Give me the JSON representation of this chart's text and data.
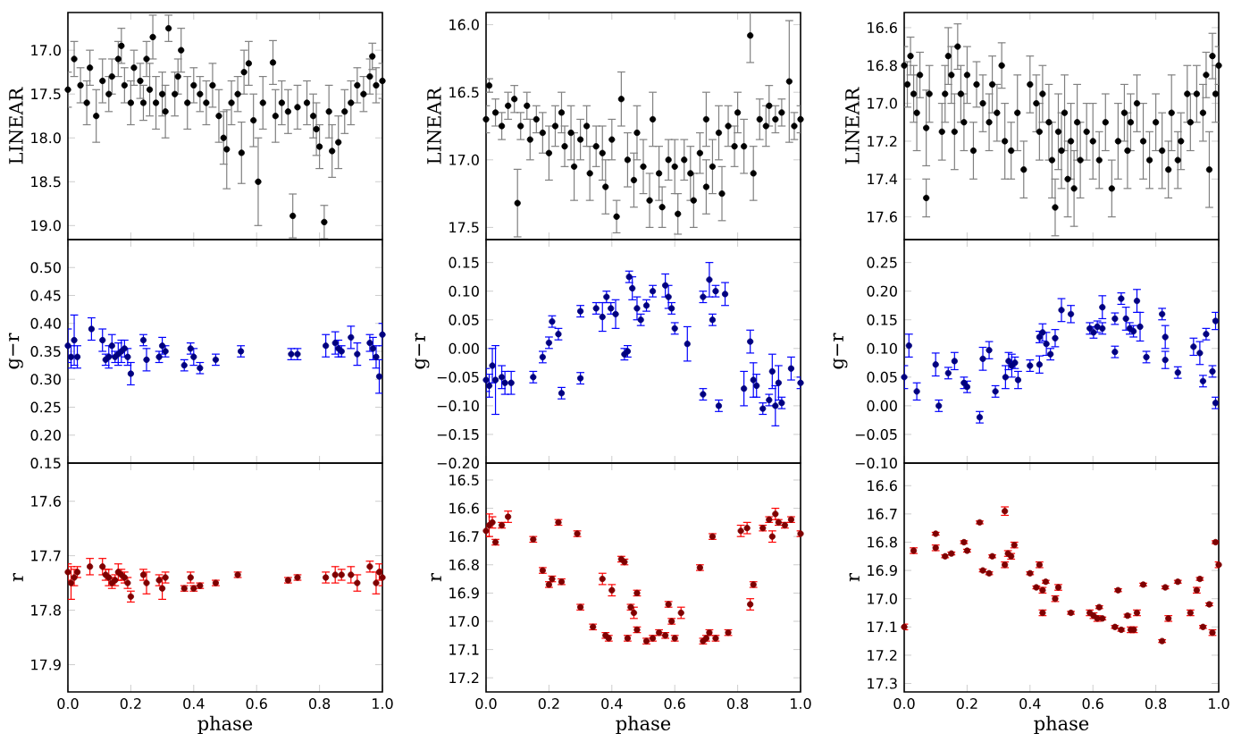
{
  "chart_data": [
    {
      "type": "scatter",
      "ylabel": "LINEAR",
      "color": "#000000",
      "marker": "circle",
      "tick_labels": "y",
      "xlim": [
        0,
        1
      ],
      "ylim": [
        19.16,
        16.57
      ],
      "xticks": [
        {
          "value": 0,
          "label": null
        },
        {
          "value": 0.2,
          "label": null
        },
        {
          "value": 0.4,
          "label": null
        },
        {
          "value": 0.6,
          "label": null
        },
        {
          "value": 0.8,
          "label": null
        },
        {
          "value": 1,
          "label": null
        }
      ],
      "yticks": [
        {
          "value": 17.0,
          "label": "17.0"
        },
        {
          "value": 17.5,
          "label": "17.5"
        },
        {
          "value": 18.0,
          "label": "18.0"
        },
        {
          "value": 18.5,
          "label": "18.5"
        },
        {
          "value": 19.0,
          "label": "19.0"
        }
      ],
      "x": [
        0.0,
        0.02,
        0.04,
        0.06,
        0.07,
        0.09,
        0.11,
        0.13,
        0.14,
        0.16,
        0.17,
        0.18,
        0.2,
        0.21,
        0.23,
        0.24,
        0.25,
        0.26,
        0.27,
        0.28,
        0.3,
        0.31,
        0.32,
        0.34,
        0.35,
        0.36,
        0.38,
        0.4,
        0.42,
        0.44,
        0.46,
        0.48,
        0.495,
        0.505,
        0.52,
        0.54,
        0.552,
        0.56,
        0.575,
        0.59,
        0.605,
        0.62,
        0.652,
        0.66,
        0.68,
        0.7,
        0.715,
        0.73,
        0.76,
        0.78,
        0.79,
        0.8,
        0.815,
        0.83,
        0.84,
        0.86,
        0.88,
        0.9,
        0.92,
        0.94,
        0.96,
        0.968,
        0.98,
        1.0
      ],
      "values": [
        17.45,
        17.1,
        17.4,
        17.6,
        17.2,
        17.75,
        17.35,
        17.5,
        17.3,
        17.1,
        16.95,
        17.4,
        17.6,
        17.2,
        17.35,
        17.6,
        17.1,
        17.45,
        16.85,
        17.6,
        17.5,
        17.7,
        16.75,
        17.5,
        17.3,
        17.0,
        17.6,
        17.4,
        17.5,
        17.6,
        17.4,
        17.75,
        18.0,
        18.13,
        17.6,
        17.5,
        18.17,
        17.25,
        17.15,
        17.8,
        18.5,
        17.6,
        17.14,
        17.75,
        17.6,
        17.7,
        18.89,
        17.65,
        17.6,
        17.75,
        17.9,
        18.1,
        18.96,
        17.7,
        18.15,
        18.05,
        17.7,
        17.6,
        17.4,
        17.5,
        17.3,
        17.07,
        17.4,
        17.35
      ],
      "errors": [
        0.2,
        0.2,
        0.2,
        0.25,
        0.2,
        0.3,
        0.25,
        0.2,
        0.2,
        0.2,
        0.2,
        0.2,
        0.25,
        0.2,
        0.2,
        0.2,
        0.2,
        0.3,
        0.25,
        0.3,
        0.25,
        0.3,
        0.15,
        0.25,
        0.2,
        0.25,
        0.3,
        0.2,
        0.2,
        0.25,
        0.25,
        0.3,
        0.3,
        0.45,
        0.25,
        0.2,
        0.35,
        0.25,
        0.25,
        0.3,
        0.5,
        0.3,
        0.25,
        0.3,
        0.25,
        0.25,
        0.25,
        0.25,
        0.25,
        0.25,
        0.3,
        0.25,
        0.19,
        0.3,
        0.3,
        0.3,
        0.25,
        0.25,
        0.2,
        0.2,
        0.2,
        0.15,
        0.2,
        0.2
      ]
    },
    {
      "type": "scatter",
      "ylabel": "LINEAR",
      "color": "#000000",
      "marker": "circle",
      "tick_labels": "y",
      "xlim": [
        0,
        1
      ],
      "ylim": [
        17.59,
        15.91
      ],
      "xticks": [
        {
          "value": 0,
          "label": null
        },
        {
          "value": 0.2,
          "label": null
        },
        {
          "value": 0.4,
          "label": null
        },
        {
          "value": 0.6,
          "label": null
        },
        {
          "value": 0.8,
          "label": null
        },
        {
          "value": 1,
          "label": null
        }
      ],
      "yticks": [
        {
          "value": 16.0,
          "label": "16.0"
        },
        {
          "value": 16.5,
          "label": "16.5"
        },
        {
          "value": 17.0,
          "label": "17.0"
        },
        {
          "value": 17.5,
          "label": "17.5"
        }
      ],
      "x": [
        0.0,
        0.01,
        0.03,
        0.05,
        0.07,
        0.09,
        0.1,
        0.11,
        0.13,
        0.14,
        0.16,
        0.18,
        0.2,
        0.22,
        0.24,
        0.25,
        0.27,
        0.28,
        0.3,
        0.32,
        0.33,
        0.35,
        0.37,
        0.38,
        0.4,
        0.415,
        0.43,
        0.45,
        0.47,
        0.48,
        0.5,
        0.52,
        0.53,
        0.55,
        0.56,
        0.58,
        0.6,
        0.61,
        0.63,
        0.65,
        0.66,
        0.68,
        0.7,
        0.7,
        0.72,
        0.74,
        0.75,
        0.77,
        0.79,
        0.8,
        0.82,
        0.84,
        0.85,
        0.87,
        0.89,
        0.9,
        0.92,
        0.94,
        0.964,
        0.98,
        1.0
      ],
      "values": [
        16.7,
        16.45,
        16.65,
        16.75,
        16.6,
        16.55,
        17.32,
        16.75,
        16.6,
        16.85,
        16.7,
        16.8,
        16.95,
        16.75,
        16.65,
        16.9,
        16.8,
        17.05,
        16.85,
        16.75,
        17.1,
        16.9,
        16.95,
        17.2,
        16.85,
        17.42,
        16.55,
        17.0,
        17.15,
        16.8,
        17.05,
        17.3,
        16.7,
        17.1,
        17.35,
        17.0,
        17.05,
        17.4,
        17.0,
        17.1,
        17.3,
        16.95,
        17.2,
        16.7,
        17.05,
        16.8,
        17.25,
        16.75,
        16.9,
        16.65,
        16.9,
        16.08,
        17.1,
        16.7,
        16.75,
        16.6,
        16.7,
        16.65,
        16.42,
        16.75,
        16.7
      ],
      "errors": [
        0.1,
        0.05,
        0.1,
        0.1,
        0.1,
        0.1,
        0.25,
        0.1,
        0.1,
        0.15,
        0.1,
        0.15,
        0.2,
        0.15,
        0.15,
        0.15,
        0.2,
        0.25,
        0.15,
        0.15,
        0.2,
        0.15,
        0.2,
        0.2,
        0.15,
        0.12,
        0.2,
        0.2,
        0.2,
        0.2,
        0.2,
        0.2,
        0.2,
        0.2,
        0.15,
        0.15,
        0.2,
        0.15,
        0.15,
        0.2,
        0.2,
        0.15,
        0.2,
        0.2,
        0.2,
        0.2,
        0.2,
        0.15,
        0.15,
        0.15,
        0.2,
        0.2,
        0.2,
        0.15,
        0.15,
        0.15,
        0.1,
        0.1,
        0.45,
        0.1,
        0.1
      ]
    },
    {
      "type": "scatter",
      "ylabel": "LINEAR",
      "color": "#000000",
      "marker": "circle",
      "tick_labels": "y",
      "xlim": [
        0,
        1
      ],
      "ylim": [
        17.72,
        16.52
      ],
      "xticks": [
        {
          "value": 0,
          "label": null
        },
        {
          "value": 0.2,
          "label": null
        },
        {
          "value": 0.4,
          "label": null
        },
        {
          "value": 0.6,
          "label": null
        },
        {
          "value": 0.8,
          "label": null
        },
        {
          "value": 1,
          "label": null
        }
      ],
      "yticks": [
        {
          "value": 16.6,
          "label": "16.6"
        },
        {
          "value": 16.8,
          "label": "16.8"
        },
        {
          "value": 17.0,
          "label": "17.0"
        },
        {
          "value": 17.2,
          "label": "17.2"
        },
        {
          "value": 17.4,
          "label": "17.4"
        },
        {
          "value": 17.6,
          "label": "17.6"
        }
      ],
      "x": [
        0.0,
        0.01,
        0.02,
        0.03,
        0.04,
        0.05,
        0.07,
        0.07,
        0.08,
        0.12,
        0.13,
        0.14,
        0.15,
        0.16,
        0.17,
        0.18,
        0.19,
        0.2,
        0.22,
        0.23,
        0.25,
        0.27,
        0.28,
        0.295,
        0.31,
        0.32,
        0.34,
        0.36,
        0.38,
        0.4,
        0.42,
        0.43,
        0.44,
        0.46,
        0.47,
        0.48,
        0.49,
        0.5,
        0.51,
        0.52,
        0.53,
        0.54,
        0.55,
        0.56,
        0.58,
        0.6,
        0.62,
        0.64,
        0.66,
        0.68,
        0.7,
        0.71,
        0.72,
        0.74,
        0.76,
        0.78,
        0.8,
        0.82,
        0.84,
        0.85,
        0.87,
        0.88,
        0.9,
        0.91,
        0.93,
        0.95,
        0.96,
        0.97,
        0.98,
        0.99,
        1.0
      ],
      "values": [
        16.8,
        16.9,
        16.75,
        16.95,
        17.05,
        16.85,
        17.13,
        17.5,
        16.95,
        17.15,
        16.95,
        16.75,
        16.85,
        17.15,
        16.7,
        16.95,
        17.1,
        16.85,
        17.25,
        16.9,
        17.0,
        17.1,
        16.9,
        17.05,
        16.8,
        17.2,
        17.25,
        17.05,
        17.35,
        16.9,
        17.0,
        17.15,
        16.95,
        17.1,
        17.3,
        17.55,
        17.15,
        17.25,
        17.05,
        17.4,
        17.2,
        17.45,
        17.1,
        17.3,
        17.15,
        17.2,
        17.3,
        17.1,
        17.45,
        17.2,
        17.05,
        17.25,
        17.1,
        17.0,
        17.2,
        17.3,
        17.1,
        17.25,
        17.35,
        17.05,
        17.3,
        17.2,
        16.95,
        17.1,
        16.95,
        17.05,
        16.85,
        17.35,
        16.75,
        16.95,
        16.8
      ],
      "errors": [
        0.1,
        0.12,
        0.1,
        0.15,
        0.2,
        0.12,
        0.2,
        0.1,
        0.15,
        0.15,
        0.15,
        0.15,
        0.15,
        0.2,
        0.12,
        0.15,
        0.15,
        0.15,
        0.15,
        0.12,
        0.15,
        0.15,
        0.15,
        0.15,
        0.12,
        0.2,
        0.15,
        0.2,
        0.15,
        0.15,
        0.15,
        0.15,
        0.15,
        0.2,
        0.2,
        0.15,
        0.2,
        0.2,
        0.2,
        0.2,
        0.2,
        0.2,
        0.2,
        0.2,
        0.15,
        0.2,
        0.15,
        0.15,
        0.15,
        0.2,
        0.15,
        0.2,
        0.15,
        0.15,
        0.2,
        0.15,
        0.15,
        0.2,
        0.15,
        0.2,
        0.15,
        0.15,
        0.15,
        0.15,
        0.15,
        0.15,
        0.12,
        0.2,
        0.12,
        0.15,
        0.1
      ]
    },
    {
      "type": "scatter",
      "ylabel": "g−r",
      "color": "#00007f",
      "marker": "circle",
      "tick_labels": "y",
      "xlim": [
        0,
        1
      ],
      "ylim": [
        0.15,
        0.55
      ],
      "xticks": [
        {
          "value": 0,
          "label": null
        },
        {
          "value": 0.2,
          "label": null
        },
        {
          "value": 0.4,
          "label": null
        },
        {
          "value": 0.6,
          "label": null
        },
        {
          "value": 0.8,
          "label": null
        },
        {
          "value": 1,
          "label": null
        }
      ],
      "yticks": [
        {
          "value": 0.15,
          "label": "0.15"
        },
        {
          "value": 0.2,
          "label": "0.20"
        },
        {
          "value": 0.25,
          "label": "0.25"
        },
        {
          "value": 0.3,
          "label": "0.30"
        },
        {
          "value": 0.35,
          "label": "0.35"
        },
        {
          "value": 0.4,
          "label": "0.40"
        },
        {
          "value": 0.45,
          "label": "0.45"
        },
        {
          "value": 0.5,
          "label": "0.50"
        }
      ],
      "x": [
        0.0,
        0.01,
        0.02,
        0.03,
        0.075,
        0.11,
        0.12,
        0.13,
        0.14,
        0.15,
        0.16,
        0.17,
        0.18,
        0.19,
        0.2,
        0.24,
        0.25,
        0.29,
        0.3,
        0.31,
        0.37,
        0.39,
        0.4,
        0.42,
        0.47,
        0.55,
        0.71,
        0.73,
        0.82,
        0.85,
        0.86,
        0.87,
        0.9,
        0.92,
        0.96,
        0.97,
        0.98,
        0.99,
        1.0
      ],
      "values": [
        0.36,
        0.34,
        0.37,
        0.34,
        0.39,
        0.37,
        0.335,
        0.34,
        0.36,
        0.34,
        0.345,
        0.35,
        0.355,
        0.34,
        0.31,
        0.37,
        0.335,
        0.34,
        0.36,
        0.35,
        0.325,
        0.355,
        0.34,
        0.32,
        0.335,
        0.35,
        0.345,
        0.345,
        0.36,
        0.365,
        0.355,
        0.35,
        0.375,
        0.345,
        0.365,
        0.355,
        0.34,
        0.305,
        0.38
      ],
      "errors": [
        0.03,
        0.02,
        0.045,
        0.02,
        0.02,
        0.02,
        0.01,
        0.02,
        0.02,
        0.01,
        0.02,
        0.02,
        0.015,
        0.015,
        0.02,
        0.01,
        0.02,
        0.01,
        0.015,
        0.01,
        0.01,
        0.01,
        0.015,
        0.01,
        0.01,
        0.01,
        0.01,
        0.01,
        0.02,
        0.02,
        0.015,
        0.01,
        0.02,
        0.02,
        0.015,
        0.02,
        0.02,
        0.03,
        0.02
      ]
    },
    {
      "type": "scatter",
      "ylabel": "g−r",
      "color": "#00007f",
      "marker": "circle",
      "tick_labels": "y",
      "xlim": [
        0,
        1
      ],
      "ylim": [
        -0.2,
        0.19
      ],
      "xticks": [
        {
          "value": 0,
          "label": null
        },
        {
          "value": 0.2,
          "label": null
        },
        {
          "value": 0.4,
          "label": null
        },
        {
          "value": 0.6,
          "label": null
        },
        {
          "value": 0.8,
          "label": null
        },
        {
          "value": 1,
          "label": null
        }
      ],
      "yticks": [
        {
          "value": -0.2,
          "label": "−0.20"
        },
        {
          "value": -0.15,
          "label": "−0.15"
        },
        {
          "value": -0.1,
          "label": "−0.10"
        },
        {
          "value": -0.05,
          "label": "−0.05"
        },
        {
          "value": 0,
          "label": "0.00"
        },
        {
          "value": 0.05,
          "label": "0.05"
        },
        {
          "value": 0.1,
          "label": "0.10"
        },
        {
          "value": 0.15,
          "label": "0.15"
        }
      ],
      "x": [
        0.0,
        0.01,
        0.02,
        0.03,
        0.05,
        0.06,
        0.08,
        0.15,
        0.18,
        0.2,
        0.21,
        0.23,
        0.24,
        0.3,
        0.3,
        0.35,
        0.37,
        0.383,
        0.397,
        0.412,
        0.44,
        0.45,
        0.455,
        0.465,
        0.48,
        0.492,
        0.51,
        0.53,
        0.57,
        0.58,
        0.59,
        0.6,
        0.64,
        0.69,
        0.69,
        0.71,
        0.72,
        0.73,
        0.74,
        0.76,
        0.82,
        0.84,
        0.85,
        0.86,
        0.88,
        0.9,
        0.91,
        0.92,
        0.93,
        0.94,
        0.97,
        1.0
      ],
      "values": [
        -0.055,
        -0.065,
        -0.03,
        -0.055,
        -0.05,
        -0.06,
        -0.06,
        -0.05,
        -0.015,
        0.01,
        0.047,
        0.025,
        -0.078,
        0.065,
        -0.052,
        0.07,
        0.055,
        0.09,
        0.07,
        0.06,
        -0.01,
        -0.005,
        0.125,
        0.105,
        0.07,
        0.05,
        0.075,
        0.1,
        0.11,
        0.09,
        0.07,
        0.035,
        0.008,
        0.09,
        -0.08,
        0.12,
        0.05,
        0.1,
        -0.1,
        0.095,
        -0.07,
        0.012,
        -0.055,
        -0.065,
        -0.105,
        -0.09,
        -0.04,
        -0.1,
        -0.06,
        -0.095,
        -0.035,
        -0.06
      ],
      "errors": [
        0.02,
        0.02,
        0.03,
        0.06,
        0.02,
        0.02,
        0.02,
        0.01,
        0.01,
        0.01,
        0.01,
        0.01,
        0.01,
        0.01,
        0.01,
        0.01,
        0.025,
        0.01,
        0.01,
        0.025,
        0.01,
        0.01,
        0.01,
        0.02,
        0.02,
        0.01,
        0.01,
        0.01,
        0.02,
        0.02,
        0.01,
        0.01,
        0.03,
        0.01,
        0.01,
        0.03,
        0.01,
        0.01,
        0.01,
        0.02,
        0.03,
        0.02,
        0.03,
        0.02,
        0.01,
        0.01,
        0.03,
        0.035,
        0.03,
        0.01,
        0.02,
        0.01
      ]
    },
    {
      "type": "scatter",
      "ylabel": "g−r",
      "color": "#00007f",
      "marker": "circle",
      "tick_labels": "y",
      "xlim": [
        0,
        1
      ],
      "ylim": [
        -0.1,
        0.29
      ],
      "xticks": [
        {
          "value": 0,
          "label": null
        },
        {
          "value": 0.2,
          "label": null
        },
        {
          "value": 0.4,
          "label": null
        },
        {
          "value": 0.6,
          "label": null
        },
        {
          "value": 0.8,
          "label": null
        },
        {
          "value": 1,
          "label": null
        }
      ],
      "yticks": [
        {
          "value": -0.1,
          "label": "−0.10"
        },
        {
          "value": -0.05,
          "label": "−0.05"
        },
        {
          "value": 0,
          "label": "0.00"
        },
        {
          "value": 0.05,
          "label": "0.05"
        },
        {
          "value": 0.1,
          "label": "0.10"
        },
        {
          "value": 0.15,
          "label": "0.15"
        },
        {
          "value": 0.2,
          "label": "0.20"
        },
        {
          "value": 0.25,
          "label": "0.25"
        }
      ],
      "x": [
        0.0,
        0.015,
        0.04,
        0.1,
        0.11,
        0.14,
        0.16,
        0.19,
        0.2,
        0.24,
        0.25,
        0.27,
        0.29,
        0.322,
        0.332,
        0.342,
        0.352,
        0.362,
        0.4,
        0.43,
        0.43,
        0.44,
        0.452,
        0.465,
        0.48,
        0.5,
        0.53,
        0.59,
        0.602,
        0.614,
        0.63,
        0.63,
        0.67,
        0.67,
        0.69,
        0.705,
        0.717,
        0.729,
        0.74,
        0.75,
        0.77,
        0.82,
        0.83,
        0.83,
        0.87,
        0.92,
        0.94,
        0.95,
        0.96,
        0.98,
        0.99,
        0.99
      ],
      "values": [
        0.05,
        0.105,
        0.025,
        0.072,
        0.0,
        0.057,
        0.078,
        0.04,
        0.033,
        -0.02,
        0.082,
        0.097,
        0.025,
        0.05,
        0.078,
        0.07,
        0.075,
        0.045,
        0.07,
        0.12,
        0.072,
        0.128,
        0.108,
        0.09,
        0.118,
        0.167,
        0.16,
        0.135,
        0.128,
        0.138,
        0.172,
        0.135,
        0.152,
        0.094,
        0.187,
        0.152,
        0.135,
        0.13,
        0.183,
        0.138,
        0.085,
        0.16,
        0.08,
        0.12,
        0.058,
        0.103,
        0.092,
        0.043,
        0.125,
        0.06,
        0.148,
        0.005
      ],
      "errors": [
        0.02,
        0.02,
        0.015,
        0.02,
        0.01,
        0.01,
        0.015,
        0.01,
        0.01,
        0.01,
        0.02,
        0.015,
        0.01,
        0.02,
        0.015,
        0.02,
        0.01,
        0.015,
        0.01,
        0.01,
        0.015,
        0.015,
        0.02,
        0.01,
        0.015,
        0.02,
        0.015,
        0.01,
        0.01,
        0.01,
        0.02,
        0.01,
        0.01,
        0.01,
        0.01,
        0.02,
        0.01,
        0.01,
        0.02,
        0.025,
        0.01,
        0.01,
        0.015,
        0.02,
        0.01,
        0.015,
        0.02,
        0.01,
        0.01,
        0.01,
        0.015,
        0.01
      ]
    },
    {
      "type": "scatter",
      "ylabel": "r",
      "xlabel": "phase",
      "color": "#7f0000",
      "marker": "circle",
      "xlim": [
        0,
        1
      ],
      "ylim": [
        17.95,
        17.53
      ],
      "xticks": [
        {
          "value": 0,
          "label": "0.0"
        },
        {
          "value": 0.2,
          "label": "0.2"
        },
        {
          "value": 0.4,
          "label": "0.4"
        },
        {
          "value": 0.6,
          "label": "0.6"
        },
        {
          "value": 0.8,
          "label": "0.8"
        },
        {
          "value": 1,
          "label": "1.0"
        }
      ],
      "yticks": [
        {
          "value": 17.6,
          "label": "17.6"
        },
        {
          "value": 17.7,
          "label": "17.7"
        },
        {
          "value": 17.8,
          "label": "17.8"
        },
        {
          "value": 17.9,
          "label": "17.9"
        }
      ],
      "x": [
        0.0,
        0.01,
        0.02,
        0.03,
        0.07,
        0.11,
        0.12,
        0.13,
        0.14,
        0.15,
        0.16,
        0.17,
        0.18,
        0.19,
        0.2,
        0.24,
        0.25,
        0.29,
        0.3,
        0.31,
        0.37,
        0.39,
        0.4,
        0.42,
        0.47,
        0.54,
        0.7,
        0.73,
        0.82,
        0.85,
        0.87,
        0.9,
        0.92,
        0.96,
        0.98,
        0.99,
        1.0
      ],
      "values": [
        17.73,
        17.75,
        17.74,
        17.73,
        17.72,
        17.72,
        17.735,
        17.74,
        17.75,
        17.745,
        17.73,
        17.735,
        17.74,
        17.75,
        17.775,
        17.735,
        17.75,
        17.745,
        17.76,
        17.74,
        17.76,
        17.74,
        17.76,
        17.755,
        17.75,
        17.735,
        17.745,
        17.74,
        17.74,
        17.735,
        17.735,
        17.735,
        17.75,
        17.72,
        17.75,
        17.73,
        17.74
      ],
      "errors": [
        0.015,
        0.03,
        0.015,
        0.01,
        0.015,
        0.015,
        0.01,
        0.015,
        0.01,
        0.01,
        0.015,
        0.01,
        0.01,
        0.01,
        0.01,
        0.01,
        0.02,
        0.01,
        0.02,
        0.01,
        0.005,
        0.01,
        0.005,
        0.005,
        0.005,
        0.005,
        0.005,
        0.005,
        0.01,
        0.015,
        0.01,
        0.015,
        0.015,
        0.01,
        0.02,
        0.015,
        0.015
      ]
    },
    {
      "type": "scatter",
      "ylabel": "r",
      "xlabel": "phase",
      "color": "#7f0000",
      "marker": "circle",
      "xlim": [
        0,
        1
      ],
      "ylim": [
        17.25,
        16.44
      ],
      "xticks": [
        {
          "value": 0,
          "label": "0.0"
        },
        {
          "value": 0.2,
          "label": "0.2"
        },
        {
          "value": 0.4,
          "label": "0.4"
        },
        {
          "value": 0.6,
          "label": "0.6"
        },
        {
          "value": 0.8,
          "label": "0.8"
        },
        {
          "value": 1,
          "label": "1.0"
        }
      ],
      "yticks": [
        {
          "value": 16.5,
          "label": "16.5"
        },
        {
          "value": 16.6,
          "label": "16.6"
        },
        {
          "value": 16.7,
          "label": "16.7"
        },
        {
          "value": 16.8,
          "label": "16.8"
        },
        {
          "value": 16.9,
          "label": "16.9"
        },
        {
          "value": 17.0,
          "label": "17.0"
        },
        {
          "value": 17.1,
          "label": "17.1"
        },
        {
          "value": 17.2,
          "label": "17.2"
        }
      ],
      "x": [
        0.0,
        0.01,
        0.02,
        0.03,
        0.05,
        0.07,
        0.15,
        0.18,
        0.2,
        0.21,
        0.23,
        0.24,
        0.29,
        0.3,
        0.34,
        0.37,
        0.38,
        0.39,
        0.4,
        0.43,
        0.44,
        0.45,
        0.46,
        0.47,
        0.48,
        0.48,
        0.51,
        0.53,
        0.55,
        0.57,
        0.58,
        0.59,
        0.6,
        0.62,
        0.68,
        0.69,
        0.7,
        0.71,
        0.72,
        0.73,
        0.77,
        0.81,
        0.83,
        0.84,
        0.85,
        0.88,
        0.9,
        0.91,
        0.92,
        0.93,
        0.95,
        0.97,
        1.0
      ],
      "values": [
        16.68,
        16.66,
        16.65,
        16.72,
        16.66,
        16.63,
        16.71,
        16.82,
        16.87,
        16.85,
        16.65,
        16.86,
        16.69,
        16.95,
        17.02,
        16.85,
        17.05,
        17.06,
        16.89,
        16.78,
        16.79,
        17.06,
        16.95,
        16.97,
        16.9,
        17.03,
        17.07,
        17.06,
        17.04,
        17.05,
        16.94,
        17.0,
        17.06,
        16.97,
        16.81,
        17.07,
        17.06,
        17.04,
        16.7,
        17.06,
        17.04,
        16.68,
        16.67,
        16.94,
        16.87,
        16.67,
        16.64,
        16.7,
        16.62,
        16.65,
        16.66,
        16.64,
        16.69
      ],
      "errors": [
        0.02,
        0.04,
        0.02,
        0.01,
        0.01,
        0.02,
        0.01,
        0.01,
        0.01,
        0.01,
        0.01,
        0.01,
        0.01,
        0.01,
        0.01,
        0.02,
        0.01,
        0.01,
        0.02,
        0.01,
        0.01,
        0.01,
        0.01,
        0.02,
        0.01,
        0.01,
        0.01,
        0.01,
        0.01,
        0.01,
        0.01,
        0.01,
        0.01,
        0.02,
        0.01,
        0.01,
        0.01,
        0.01,
        0.01,
        0.01,
        0.01,
        0.02,
        0.02,
        0.02,
        0.01,
        0.01,
        0.01,
        0.02,
        0.02,
        0.01,
        0.01,
        0.01,
        0.01
      ]
    },
    {
      "type": "scatter",
      "ylabel": "r",
      "xlabel": "phase",
      "color": "#7f0000",
      "marker": "circle",
      "xlim": [
        0,
        1
      ],
      "ylim": [
        17.33,
        16.52
      ],
      "xticks": [
        {
          "value": 0,
          "label": "0.0"
        },
        {
          "value": 0.2,
          "label": "0.2"
        },
        {
          "value": 0.4,
          "label": "0.4"
        },
        {
          "value": 0.6,
          "label": "0.6"
        },
        {
          "value": 0.8,
          "label": "0.8"
        },
        {
          "value": 1,
          "label": "1.0"
        }
      ],
      "yticks": [
        {
          "value": 16.6,
          "label": "16.6"
        },
        {
          "value": 16.7,
          "label": "16.7"
        },
        {
          "value": 16.8,
          "label": "16.8"
        },
        {
          "value": 16.9,
          "label": "16.9"
        },
        {
          "value": 17.0,
          "label": "17.0"
        },
        {
          "value": 17.1,
          "label": "17.1"
        },
        {
          "value": 17.2,
          "label": "17.2"
        },
        {
          "value": 17.3,
          "label": "17.3"
        }
      ],
      "x": [
        0.0,
        0.03,
        0.1,
        0.1,
        0.13,
        0.15,
        0.19,
        0.2,
        0.24,
        0.25,
        0.27,
        0.28,
        0.32,
        0.32,
        0.33,
        0.34,
        0.35,
        0.4,
        0.42,
        0.43,
        0.44,
        0.44,
        0.45,
        0.48,
        0.49,
        0.53,
        0.59,
        0.602,
        0.614,
        0.62,
        0.63,
        0.67,
        0.68,
        0.69,
        0.71,
        0.72,
        0.73,
        0.74,
        0.76,
        0.82,
        0.83,
        0.84,
        0.87,
        0.91,
        0.93,
        0.94,
        0.95,
        0.97,
        0.98,
        0.99,
        1.0
      ],
      "values": [
        17.1,
        16.83,
        16.77,
        16.82,
        16.85,
        16.84,
        16.8,
        16.83,
        16.73,
        16.9,
        16.91,
        16.85,
        16.69,
        16.88,
        16.84,
        16.85,
        16.81,
        16.91,
        16.96,
        16.88,
        16.97,
        17.05,
        16.94,
        17.0,
        16.96,
        17.05,
        17.05,
        17.06,
        17.07,
        17.03,
        17.07,
        17.1,
        16.97,
        17.11,
        17.06,
        17.11,
        17.11,
        17.05,
        16.95,
        17.15,
        16.96,
        17.07,
        16.94,
        17.05,
        16.97,
        16.93,
        17.1,
        17.02,
        17.12,
        16.8,
        16.88
      ],
      "errors": [
        0.01,
        0.01,
        0.005,
        0.01,
        0.005,
        0.005,
        0.005,
        0.005,
        0.005,
        0.005,
        0.005,
        0.005,
        0.015,
        0.01,
        0.01,
        0.01,
        0.01,
        0.005,
        0.005,
        0.01,
        0.01,
        0.01,
        0.005,
        0.01,
        0.01,
        0.005,
        0.01,
        0.01,
        0.01,
        0.005,
        0.005,
        0.005,
        0.005,
        0.005,
        0.005,
        0.01,
        0.01,
        0.01,
        0.005,
        0.005,
        0.005,
        0.01,
        0.005,
        0.01,
        0.01,
        0.005,
        0.005,
        0.005,
        0.01,
        0.005,
        0.01
      ]
    }
  ]
}
